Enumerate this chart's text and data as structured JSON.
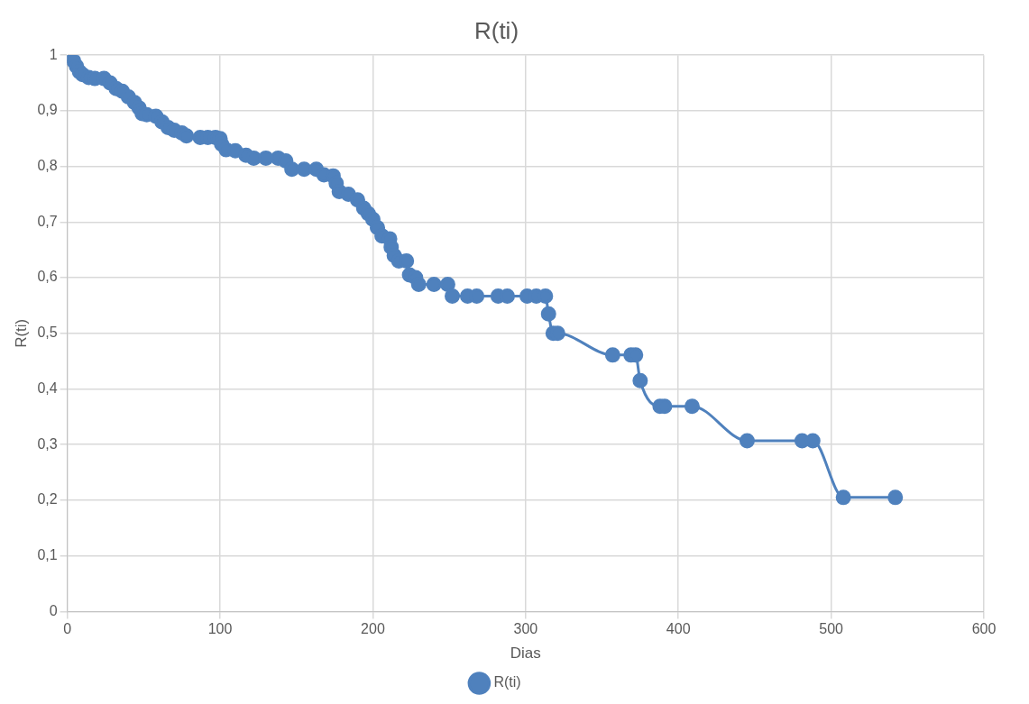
{
  "chart_data": {
    "type": "line",
    "title": "R(ti)",
    "xlabel": "Dias",
    "ylabel": "R(ti)",
    "xlim": [
      0,
      600
    ],
    "xticks": [
      0,
      100,
      200,
      300,
      400,
      500,
      600
    ],
    "ylim": [
      0,
      1
    ],
    "yticks": [
      {
        "value": 0,
        "label": "0"
      },
      {
        "value": 0.1,
        "label": "0,1"
      },
      {
        "value": 0.2,
        "label": "0,2"
      },
      {
        "value": 0.3,
        "label": "0,3"
      },
      {
        "value": 0.4,
        "label": "0,4"
      },
      {
        "value": 0.5,
        "label": "0,5"
      },
      {
        "value": 0.6,
        "label": "0,6"
      },
      {
        "value": 0.7,
        "label": "0,7"
      },
      {
        "value": 0.8,
        "label": "0,8"
      },
      {
        "value": 0.9,
        "label": "0,9"
      },
      {
        "value": 1,
        "label": "1"
      }
    ],
    "grid": true,
    "legend": "bottom",
    "marker": "circle",
    "line_style": "solid",
    "series": [
      {
        "name": "R(ti)",
        "color": "#4f81bd",
        "x": [
          0,
          2,
          4,
          6,
          8,
          10,
          14,
          18,
          24,
          28,
          32,
          36,
          40,
          44,
          47,
          49,
          52,
          58,
          62,
          66,
          70,
          75,
          78,
          87,
          92,
          97,
          100,
          101,
          104,
          110,
          117,
          122,
          130,
          138,
          143,
          147,
          155,
          163,
          168,
          174,
          176,
          178,
          184,
          190,
          194,
          197,
          200,
          203,
          206,
          211,
          212,
          214,
          217,
          222,
          224,
          228,
          230,
          240,
          249,
          252,
          262,
          268,
          282,
          288,
          301,
          307,
          313,
          315,
          318,
          321,
          357,
          369,
          372,
          375,
          388,
          391,
          409,
          445,
          481,
          488,
          508,
          542
        ],
        "values": [
          1.0,
          0.995,
          0.99,
          0.98,
          0.97,
          0.965,
          0.96,
          0.958,
          0.958,
          0.95,
          0.94,
          0.935,
          0.925,
          0.915,
          0.905,
          0.895,
          0.893,
          0.89,
          0.88,
          0.87,
          0.865,
          0.86,
          0.855,
          0.852,
          0.852,
          0.852,
          0.85,
          0.84,
          0.83,
          0.828,
          0.82,
          0.815,
          0.815,
          0.815,
          0.81,
          0.795,
          0.795,
          0.795,
          0.785,
          0.783,
          0.77,
          0.755,
          0.75,
          0.74,
          0.725,
          0.715,
          0.705,
          0.69,
          0.675,
          0.67,
          0.655,
          0.64,
          0.63,
          0.63,
          0.605,
          0.6,
          0.588,
          0.588,
          0.588,
          0.567,
          0.567,
          0.567,
          0.567,
          0.567,
          0.567,
          0.567,
          0.567,
          0.535,
          0.5,
          0.5,
          0.461,
          0.461,
          0.461,
          0.415,
          0.369,
          0.369,
          0.369,
          0.307,
          0.307,
          0.307,
          0.205,
          0.205
        ]
      }
    ]
  }
}
